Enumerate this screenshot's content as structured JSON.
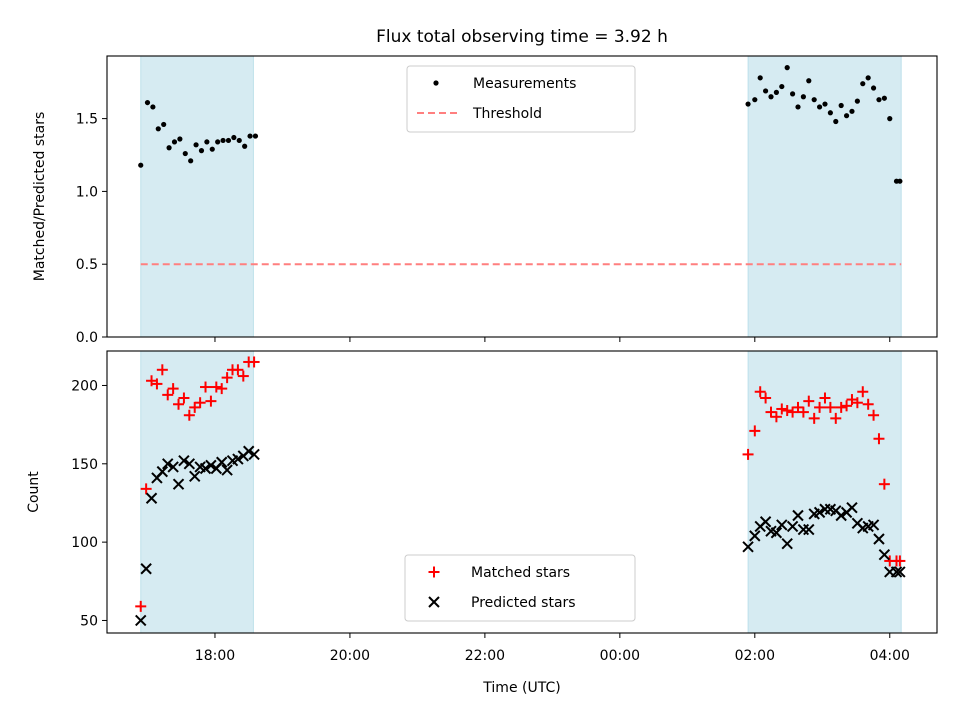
{
  "chart_data": {
    "title": "Flux total observing time = 3.92 h",
    "xlabel": "Time (UTC)",
    "x_unit": "hours (UTC, >24 = next day)",
    "xlim": [
      16.4,
      28.7
    ],
    "xticks": [
      {
        "value": 18,
        "label": "18:00"
      },
      {
        "value": 20,
        "label": "20:00"
      },
      {
        "value": 22,
        "label": "22:00"
      },
      {
        "value": 24,
        "label": "00:00"
      },
      {
        "value": 26,
        "label": "02:00"
      },
      {
        "value": 28,
        "label": "04:00"
      }
    ],
    "shaded_spans": [
      [
        16.9,
        18.57
      ],
      [
        25.9,
        28.17
      ]
    ],
    "shade_color": "#add8e6",
    "panels": [
      {
        "type": "scatter",
        "ylabel": "Matched/Predicted stars",
        "ylim": [
          0,
          1.93
        ],
        "yticks": [
          {
            "value": 0.0,
            "label": "0.0"
          },
          {
            "value": 0.5,
            "label": "0.5"
          },
          {
            "value": 1.0,
            "label": "1.0"
          },
          {
            "value": 1.5,
            "label": "1.5"
          }
        ],
        "legend": {
          "position": "upper center",
          "entries": [
            {
              "label": "Measurements",
              "marker": "dot",
              "color": "#000000"
            },
            {
              "label": "Threshold",
              "marker": "dashed-line",
              "color": "#ff7f7f"
            }
          ]
        },
        "threshold": {
          "name": "Threshold",
          "value": 0.5,
          "x_range": [
            16.9,
            28.17
          ],
          "color": "#ff7f7f"
        },
        "series": [
          {
            "name": "Measurements",
            "color": "#000000",
            "marker": "dot",
            "x": [
              16.9,
              17.0,
              17.08,
              17.16,
              17.24,
              17.32,
              17.4,
              17.48,
              17.56,
              17.64,
              17.72,
              17.8,
              17.88,
              17.96,
              18.04,
              18.12,
              18.2,
              18.28,
              18.36,
              18.44,
              18.52,
              18.6,
              25.9,
              26.0,
              26.08,
              26.16,
              26.24,
              26.32,
              26.4,
              26.48,
              26.56,
              26.64,
              26.72,
              26.8,
              26.88,
              26.96,
              27.04,
              27.12,
              27.2,
              27.28,
              27.36,
              27.44,
              27.52,
              27.6,
              27.68,
              27.76,
              27.84,
              27.92,
              28.0,
              28.1,
              28.15
            ],
            "y": [
              1.18,
              1.61,
              1.58,
              1.43,
              1.46,
              1.3,
              1.34,
              1.36,
              1.26,
              1.21,
              1.32,
              1.28,
              1.34,
              1.29,
              1.34,
              1.35,
              1.35,
              1.37,
              1.35,
              1.31,
              1.38,
              1.38,
              1.6,
              1.63,
              1.78,
              1.69,
              1.65,
              1.68,
              1.72,
              1.85,
              1.67,
              1.58,
              1.65,
              1.76,
              1.63,
              1.58,
              1.6,
              1.54,
              1.48,
              1.59,
              1.52,
              1.55,
              1.62,
              1.74,
              1.78,
              1.71,
              1.63,
              1.64,
              1.5,
              1.07,
              1.07
            ]
          }
        ]
      },
      {
        "type": "scatter",
        "ylabel": "Count",
        "ylim": [
          42,
          222
        ],
        "yticks": [
          {
            "value": 50,
            "label": "50"
          },
          {
            "value": 100,
            "label": "100"
          },
          {
            "value": 150,
            "label": "150"
          },
          {
            "value": 200,
            "label": "200"
          }
        ],
        "legend": {
          "position": "lower center",
          "entries": [
            {
              "label": "Matched stars",
              "marker": "plus",
              "color": "#ff0000"
            },
            {
              "label": "Predicted stars",
              "marker": "x",
              "color": "#000000"
            }
          ]
        },
        "series": [
          {
            "name": "Matched stars",
            "color": "#ff0000",
            "marker": "plus",
            "x": [
              16.9,
              16.98,
              17.06,
              17.14,
              17.22,
              17.3,
              17.38,
              17.46,
              17.54,
              17.62,
              17.7,
              17.78,
              17.86,
              17.94,
              18.02,
              18.1,
              18.18,
              18.26,
              18.34,
              18.42,
              18.5,
              18.58,
              25.9,
              26.0,
              26.08,
              26.16,
              26.24,
              26.32,
              26.4,
              26.48,
              26.56,
              26.64,
              26.72,
              26.8,
              26.88,
              26.96,
              27.04,
              27.12,
              27.2,
              27.28,
              27.36,
              27.44,
              27.52,
              27.6,
              27.68,
              27.76,
              27.84,
              27.92,
              28.0,
              28.1,
              28.15
            ],
            "y": [
              59,
              134,
              203,
              201,
              210,
              194,
              198,
              188,
              192,
              181,
              186,
              189,
              199,
              190,
              199,
              198,
              205,
              210,
              210,
              206,
              215,
              215,
              156,
              171,
              196,
              192,
              183,
              180,
              185,
              184,
              183,
              186,
              183,
              190,
              179,
              186,
              192,
              186,
              179,
              186,
              187,
              191,
              189,
              196,
              188,
              181,
              166,
              137,
              88,
              88,
              88
            ]
          },
          {
            "name": "Predicted stars",
            "color": "#000000",
            "marker": "x",
            "x": [
              16.9,
              16.98,
              17.06,
              17.14,
              17.22,
              17.3,
              17.38,
              17.46,
              17.54,
              17.62,
              17.7,
              17.78,
              17.86,
              17.94,
              18.02,
              18.1,
              18.18,
              18.26,
              18.34,
              18.42,
              18.5,
              18.58,
              25.9,
              26.0,
              26.08,
              26.16,
              26.24,
              26.32,
              26.4,
              26.48,
              26.56,
              26.64,
              26.72,
              26.8,
              26.88,
              26.96,
              27.04,
              27.12,
              27.2,
              27.28,
              27.36,
              27.44,
              27.52,
              27.6,
              27.68,
              27.76,
              27.84,
              27.92,
              28.0,
              28.1,
              28.15
            ],
            "y": [
              50,
              83,
              128,
              141,
              145,
              150,
              148,
              137,
              152,
              150,
              142,
              148,
              147,
              149,
              147,
              151,
              146,
              152,
              153,
              155,
              158,
              156,
              97,
              104,
              110,
              113,
              107,
              106,
              111,
              99,
              110,
              117,
              108,
              108,
              118,
              119,
              121,
              121,
              120,
              117,
              119,
              122,
              112,
              109,
              110,
              111,
              102,
              92,
              81,
              81,
              81
            ]
          }
        ]
      }
    ]
  }
}
